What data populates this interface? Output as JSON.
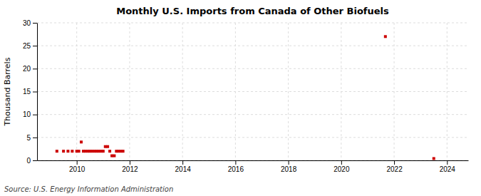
{
  "chart_data": {
    "type": "scatter",
    "title": "Monthly U.S. Imports from Canada of Other Biofuels",
    "ylabel": "Thousand Barrels",
    "source": "Source: U.S. Energy Information Administration",
    "x": [
      2009.25,
      2009.5,
      2009.67,
      2009.83,
      2010.0,
      2010.08,
      2010.17,
      2010.25,
      2010.33,
      2010.42,
      2010.5,
      2010.58,
      2010.67,
      2010.75,
      2010.83,
      2010.92,
      2011.0,
      2011.08,
      2011.17,
      2011.25,
      2011.33,
      2011.42,
      2011.5,
      2011.58,
      2011.67,
      2011.75,
      2021.67,
      2023.5
    ],
    "values": [
      2.0,
      2.0,
      2.0,
      2.0,
      2.0,
      2.0,
      4.0,
      2.0,
      2.0,
      2.0,
      2.0,
      2.0,
      2.0,
      2.0,
      2.0,
      2.0,
      2.0,
      3.0,
      3.0,
      2.0,
      1.0,
      1.0,
      2.0,
      2.0,
      2.0,
      2.0,
      27.0,
      0.4
    ],
    "color": "#cc0000",
    "marker": "square",
    "xlim": [
      2008.5,
      2024.8
    ],
    "ylim": [
      0,
      30
    ],
    "xticks": [
      2010,
      2012,
      2014,
      2016,
      2018,
      2020,
      2022,
      2024
    ],
    "yticks": [
      0,
      5,
      10,
      15,
      20,
      25,
      30
    ],
    "grid": true
  }
}
